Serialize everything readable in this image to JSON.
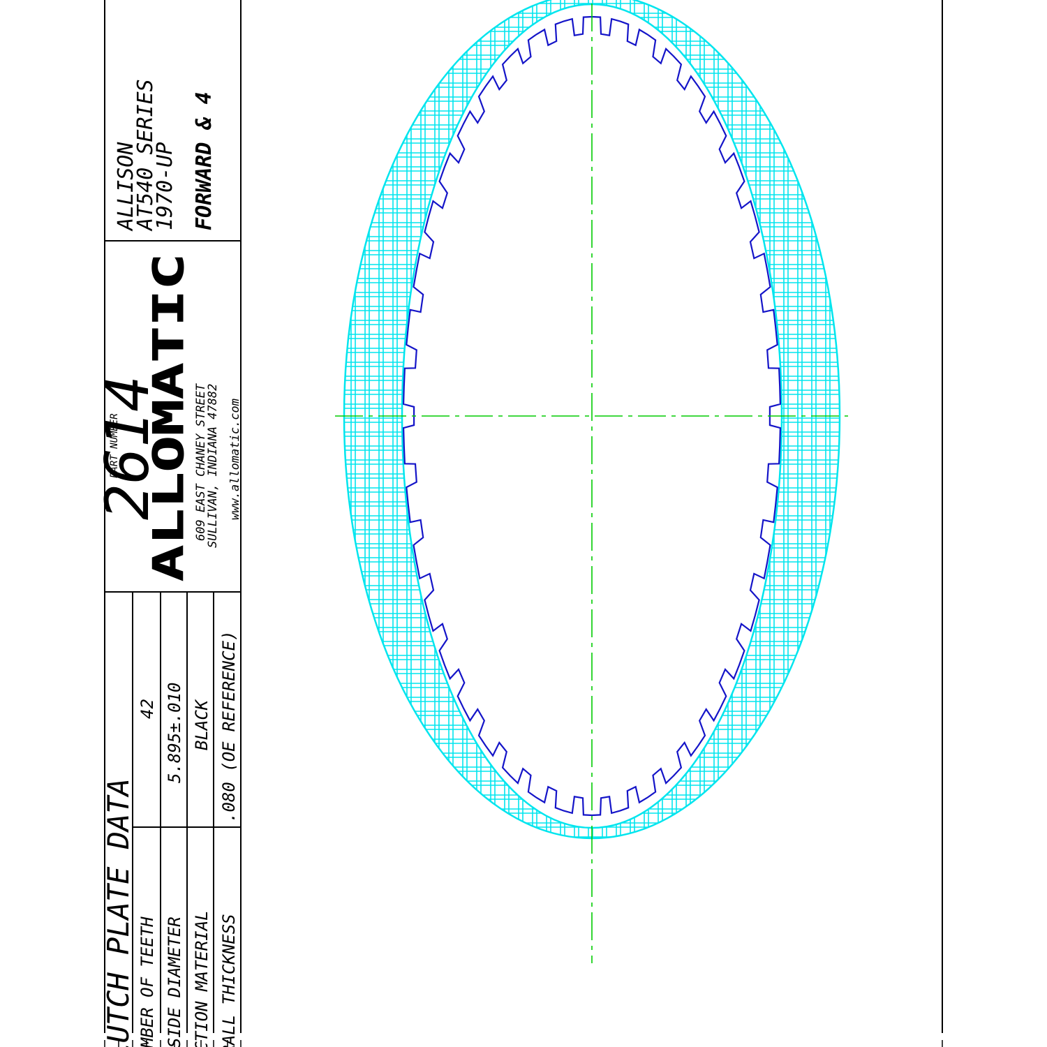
{
  "title_block": {
    "part_number_label": "PART NUMBER",
    "part_number": "2614",
    "logo": "ALLOMATIC",
    "address_line1": "609 EAST CHANEY STREET",
    "address_line2": "SULLIVAN, INDIANA 47882",
    "website": "www.allomatic.com"
  },
  "application": {
    "line1": "ALLISON",
    "line2": "AT540 SERIES",
    "line3": "1970-UP",
    "line4": "FORWARD & 4"
  },
  "clutch_plate_data": {
    "heading": "CLUTCH PLATE DATA",
    "rows": [
      {
        "label": "NUMBER OF TEETH",
        "value": "42"
      },
      {
        "label": "INSIDE DIAMETER",
        "value": "5.895±.010"
      },
      {
        "label": "FRICTION MATERIAL",
        "value": "BLACK"
      },
      {
        "label": "OVERALL THICKNESS",
        "value": ".080 (OE REFERENCE)"
      }
    ]
  },
  "drawing": {
    "teeth_count": 42,
    "colors": {
      "friction_face": "#00e5ee",
      "spline": "#1414c8",
      "centerline": "#00cc00",
      "border": "#000000"
    }
  }
}
